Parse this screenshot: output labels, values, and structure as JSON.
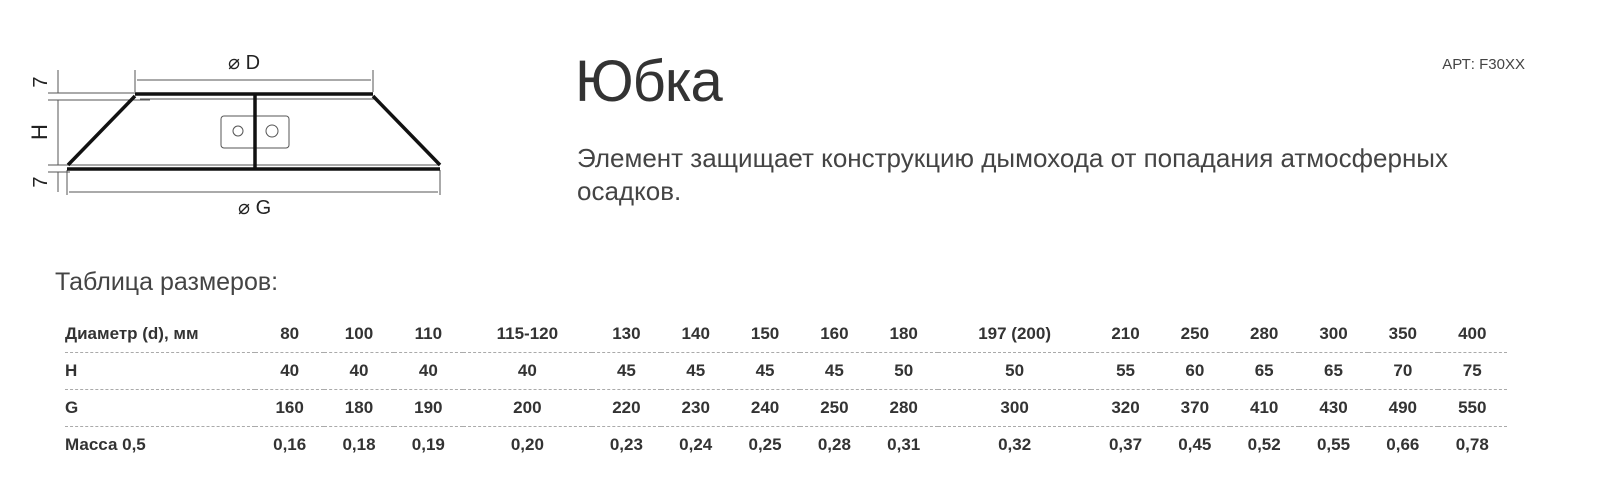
{
  "diagram": {
    "d_label": "⌀ D",
    "g_label": "⌀ G",
    "h_label": "H",
    "seam_label": "7"
  },
  "product": {
    "title": "Юбка",
    "article": "АРТ: F30XX",
    "description": "Элемент защищает конструкцию дымохода от попадания атмос­ферных осадков."
  },
  "table": {
    "caption": "Таблица размеров:",
    "rows": [
      {
        "label": "Диаметр (d), мм",
        "values": [
          "80",
          "100",
          "110",
          "115-120",
          "130",
          "140",
          "150",
          "160",
          "180",
          "197 (200)",
          "210",
          "250",
          "280",
          "300",
          "350",
          "400"
        ]
      },
      {
        "label": "H",
        "values": [
          "40",
          "40",
          "40",
          "40",
          "45",
          "45",
          "45",
          "45",
          "50",
          "50",
          "55",
          "60",
          "65",
          "65",
          "70",
          "75"
        ]
      },
      {
        "label": "G",
        "values": [
          "160",
          "180",
          "190",
          "200",
          "220",
          "230",
          "240",
          "250",
          "280",
          "300",
          "320",
          "370",
          "410",
          "430",
          "490",
          "550"
        ]
      },
      {
        "label": "Масса 0,5",
        "values": [
          "0,16",
          "0,18",
          "0,19",
          "0,20",
          "0,23",
          "0,24",
          "0,25",
          "0,28",
          "0,31",
          "0,32",
          "0,37",
          "0,45",
          "0,52",
          "0,55",
          "0,66",
          "0,78"
        ]
      }
    ]
  }
}
